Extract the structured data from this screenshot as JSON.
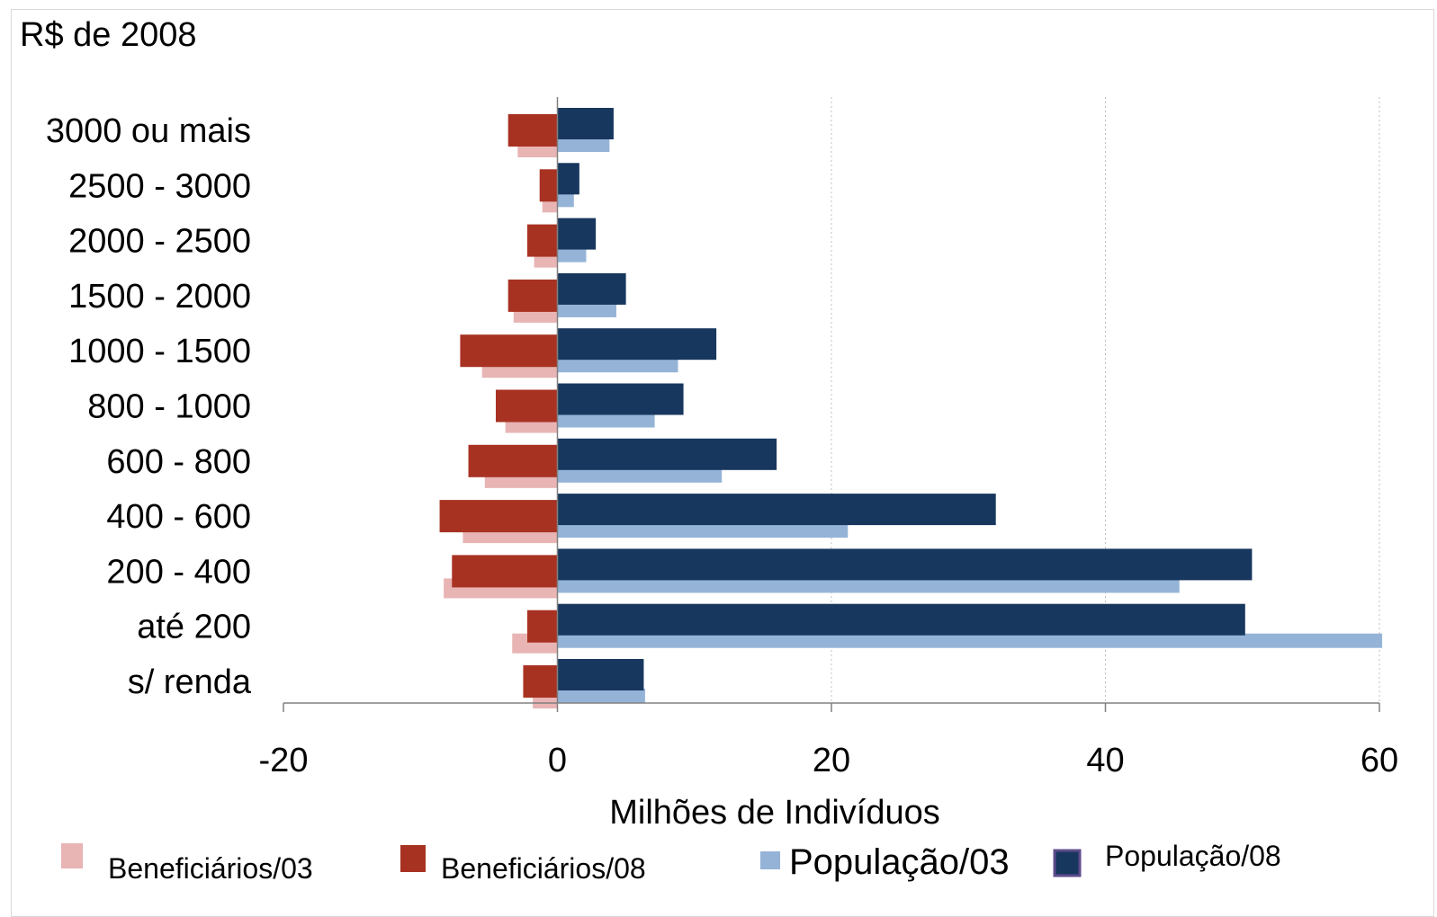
{
  "chart_data": {
    "type": "bar",
    "orientation": "horizontal",
    "unit_label": "R$ de 2008",
    "xlabel": "Milhões de Indivíduos",
    "xlim": [
      -20,
      60
    ],
    "xticks": [
      -20,
      0,
      20,
      40,
      60
    ],
    "xtick_labels": [
      "-20",
      "0",
      "20",
      "40",
      "60"
    ],
    "grid": "vertical dotted",
    "categories": [
      "3000 ou mais",
      "2500 - 3000",
      "2000 - 2500",
      "1500 - 2000",
      "1000 - 1500",
      "800 - 1000",
      "600 - 800",
      "400 - 600",
      "200 - 400",
      "até 200",
      "s/ renda"
    ],
    "series": [
      {
        "name": "Beneficiários/03",
        "color": "#e8b4b4",
        "values": [
          -2.9,
          -1.1,
          -1.7,
          -3.2,
          -5.5,
          -3.8,
          -5.3,
          -6.9,
          -8.3,
          -3.3,
          -1.8
        ]
      },
      {
        "name": "Beneficiários/08",
        "color": "#a83222",
        "values": [
          -3.6,
          -1.3,
          -2.2,
          -3.6,
          -7.1,
          -4.5,
          -6.5,
          -8.6,
          -7.7,
          -2.2,
          -2.5
        ]
      },
      {
        "name": "População/03",
        "color": "#95b3d7",
        "values": [
          3.8,
          1.2,
          2.1,
          4.3,
          8.8,
          7.1,
          12.0,
          21.2,
          45.4,
          60.2,
          6.4
        ]
      },
      {
        "name": "População/08",
        "color": "#17375e",
        "values": [
          4.1,
          1.6,
          2.8,
          5.0,
          11.6,
          9.2,
          16.0,
          32.0,
          50.7,
          50.2,
          6.3
        ]
      }
    ],
    "legend": {
      "position": "bottom",
      "items": [
        "Beneficiários/03",
        "Beneficiários/08",
        "População/03",
        "População/08"
      ]
    }
  }
}
